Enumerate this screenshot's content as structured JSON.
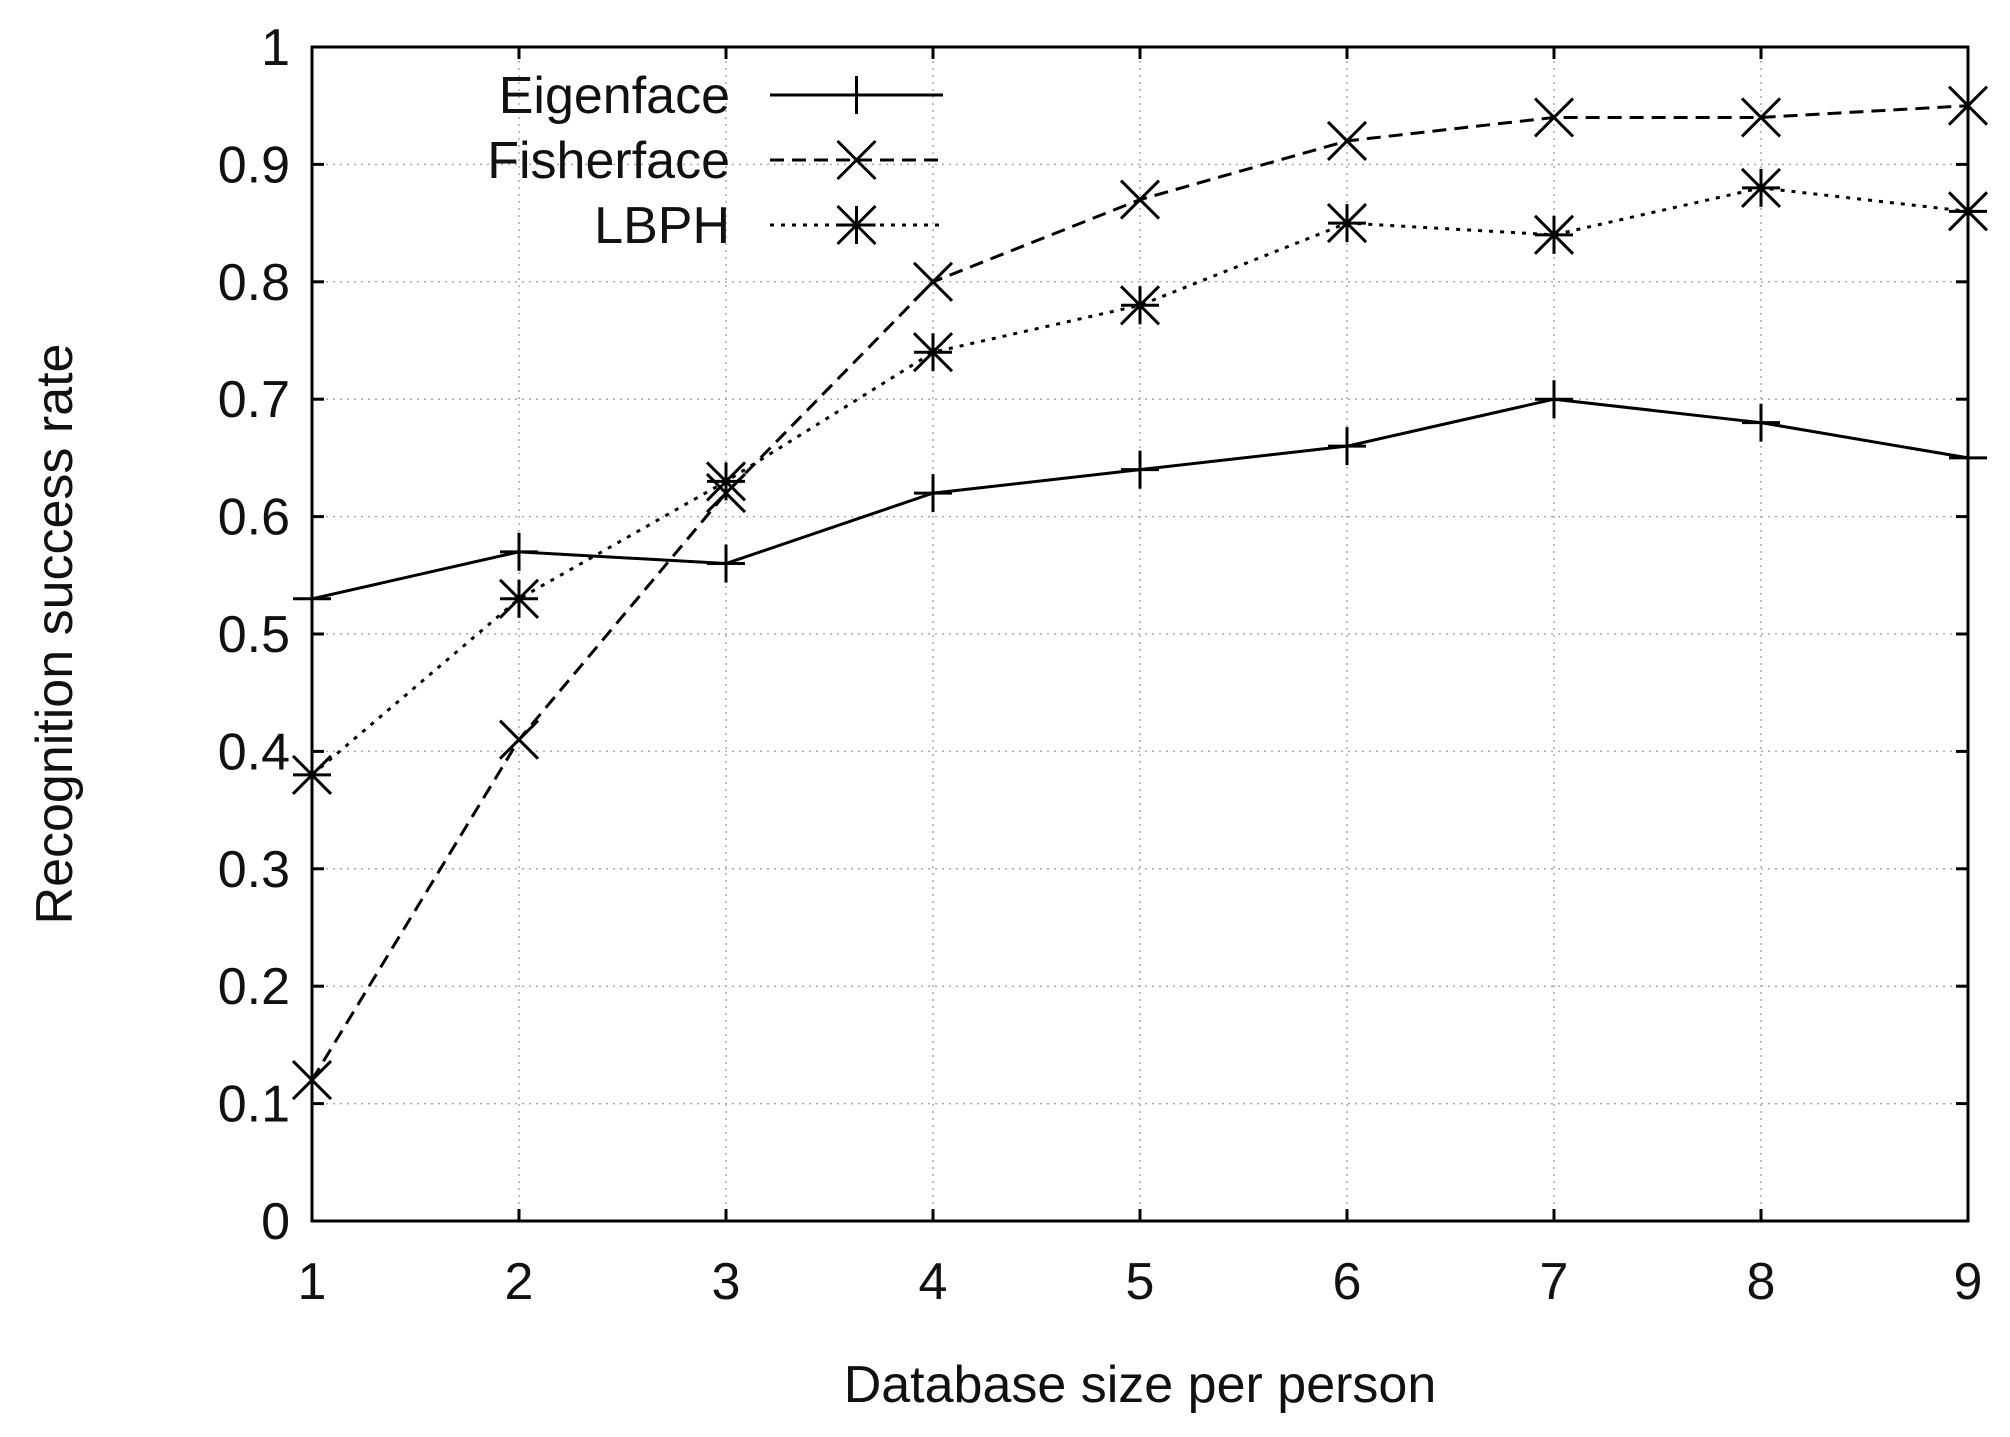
{
  "chart_data": {
    "type": "line",
    "title": "",
    "xlabel": "Database size per person",
    "ylabel": "Recognition success rate",
    "x": [
      1,
      2,
      3,
      4,
      5,
      6,
      7,
      8,
      9
    ],
    "xlim": [
      1,
      9
    ],
    "ylim": [
      0,
      1
    ],
    "xticks": [
      "1",
      "2",
      "3",
      "4",
      "5",
      "6",
      "7",
      "8",
      "9"
    ],
    "yticks": [
      "0",
      "0.1",
      "0.2",
      "0.3",
      "0.4",
      "0.5",
      "0.6",
      "0.7",
      "0.8",
      "0.9",
      "1"
    ],
    "grid": true,
    "legend_position": "top-left",
    "series": [
      {
        "name": "Eigenface",
        "marker": "plus",
        "line_style": "solid",
        "values": [
          0.53,
          0.57,
          0.56,
          0.62,
          0.64,
          0.66,
          0.7,
          0.68,
          0.65
        ]
      },
      {
        "name": "Fisherface",
        "marker": "cross",
        "line_style": "dashed",
        "values": [
          0.12,
          0.41,
          0.62,
          0.8,
          0.87,
          0.92,
          0.94,
          0.94,
          0.95
        ]
      },
      {
        "name": "LBPH",
        "marker": "star",
        "line_style": "dotted",
        "values": [
          0.38,
          0.53,
          0.63,
          0.74,
          0.78,
          0.85,
          0.84,
          0.88,
          0.86
        ]
      }
    ]
  }
}
